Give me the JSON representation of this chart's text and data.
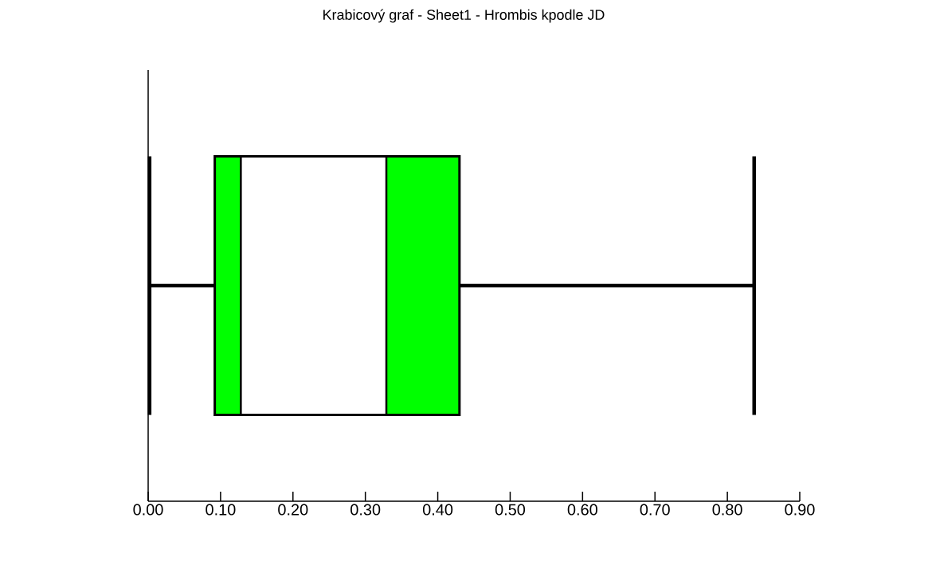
{
  "chart_data": {
    "type": "box",
    "title": "Krabicový graf - Sheet1 - Hrombis kpodle JD",
    "orientation": "horizontal",
    "categories": [
      null
    ],
    "series": [
      {
        "color": "#00ff00",
        "boxes": [
          {
            "low": 0.002,
            "q1": 0.092,
            "median": 0.128,
            "mean": 0.329,
            "q3": 0.43,
            "high": 0.837
          }
        ]
      }
    ],
    "xlim": [
      0,
      0.9
    ],
    "xticks": [
      {
        "value": 0,
        "label": "0.00"
      },
      {
        "value": 0.1,
        "label": "0.10"
      },
      {
        "value": 0.2,
        "label": "0.20"
      },
      {
        "value": 0.3,
        "label": "0.30"
      },
      {
        "value": 0.4,
        "label": "0.40"
      },
      {
        "value": 0.5,
        "label": "0.50"
      },
      {
        "value": 0.6,
        "label": "0.60"
      },
      {
        "value": 0.7,
        "label": "0.70"
      },
      {
        "value": 0.8,
        "label": "0.80"
      },
      {
        "value": 0.9,
        "label": "0.90"
      }
    ]
  }
}
